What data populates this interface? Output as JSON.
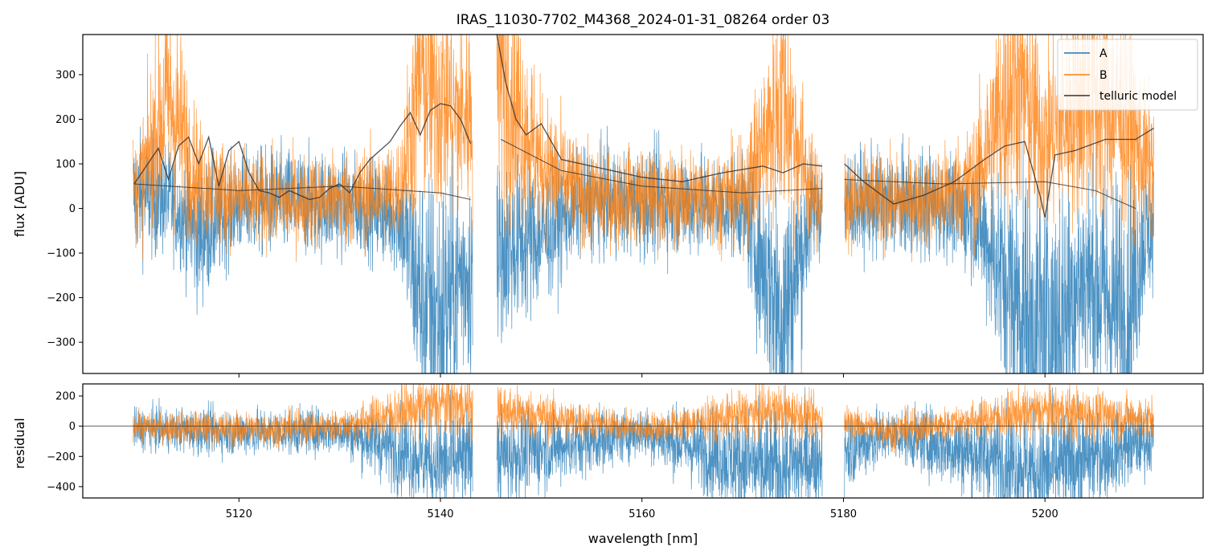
{
  "chart_data": [
    {
      "type": "line",
      "title": "IRAS_11030-7702_M4368_2024-01-31_08264  order 03",
      "xlabel": "",
      "ylabel": "flux [ADU]",
      "xlim": [
        5104.5,
        5215.7
      ],
      "ylim": [
        -370,
        390
      ],
      "yticks": [
        -300,
        -200,
        -100,
        0,
        100,
        200,
        300
      ],
      "xticks": [
        5120,
        5140,
        5160,
        5180,
        5200
      ],
      "legend": {
        "placement": "top-right",
        "entries": [
          "A",
          "B",
          "telluric model"
        ]
      },
      "colors": {
        "A": "#1f77b4",
        "B": "#ff7f0e",
        "telluric model": "#333333"
      },
      "segments": [
        [
          5109.5,
          5143.2
        ],
        [
          5145.6,
          5177.9
        ],
        [
          5180.1,
          5210.8
        ]
      ],
      "series": [
        {
          "name": "A",
          "description_points": {
            "x": [
              5110,
              5113,
              5116,
              5120,
              5124,
              5128,
              5132,
              5136,
              5138,
              5140,
              5142,
              5146,
              5150,
              5154,
              5158,
              5162,
              5166,
              5170,
              5174,
              5177,
              5181,
              5185,
              5189,
              5193,
              5197,
              5200,
              5204,
              5208,
              5210
            ],
            "y": [
              30,
              20,
              -60,
              10,
              15,
              10,
              5,
              -20,
              -200,
              -250,
              -150,
              -100,
              -60,
              10,
              10,
              15,
              10,
              0,
              -250,
              0,
              10,
              10,
              10,
              -20,
              -200,
              -300,
              -150,
              -250,
              -50
            ]
          }
        },
        {
          "name": "B",
          "description_points": {
            "x": [
              5110,
              5113,
              5116,
              5120,
              5124,
              5128,
              5132,
              5136,
              5138,
              5140,
              5142,
              5146,
              5150,
              5154,
              5158,
              5162,
              5166,
              5170,
              5174,
              5177,
              5181,
              5185,
              5189,
              5193,
              5197,
              5200,
              5204,
              5208,
              5210
            ],
            "y": [
              40,
              250,
              60,
              20,
              15,
              20,
              25,
              40,
              300,
              250,
              200,
              300,
              100,
              30,
              25,
              20,
              25,
              30,
              250,
              30,
              20,
              15,
              20,
              60,
              300,
              150,
              250,
              200,
              100
            ]
          }
        },
        {
          "name": "telluric model",
          "description_points": {
            "x": [
              5109.6,
              5110.5,
              5112,
              5113,
              5114,
              5115,
              5116,
              5117,
              5118,
              5119,
              5120,
              5121,
              5122,
              5123,
              5124,
              5125,
              5126,
              5127,
              5128,
              5129,
              5130,
              5131,
              5132,
              5133,
              5134,
              5135,
              5136,
              5137,
              5138,
              5139,
              5140,
              5141,
              5142,
              5143
            ],
            "y": [
              55,
              85,
              135,
              65,
              140,
              160,
              100,
              160,
              50,
              130,
              150,
              80,
              40,
              35,
              25,
              40,
              30,
              20,
              25,
              45,
              55,
              35,
              80,
              110,
              130,
              150,
              185,
              215,
              165,
              220,
              235,
              230,
              200,
              145
            ]
          }
        }
      ]
    },
    {
      "type": "line",
      "title": "",
      "xlabel": "wavelength [nm]",
      "ylabel": "residual",
      "xlim": [
        5104.5,
        5215.7
      ],
      "ylim": [
        -475,
        280
      ],
      "yticks": [
        -400,
        -200,
        0,
        200
      ],
      "xticks": [
        5120,
        5140,
        5160,
        5180,
        5200
      ],
      "series": [
        {
          "name": "A",
          "description_points": {
            "x": [
              5110,
              5120,
              5130,
              5140,
              5146,
              5160,
              5173,
              5185,
              5200,
              5210
            ],
            "y": [
              -20,
              -40,
              -30,
              -250,
              -200,
              -40,
              -300,
              -50,
              -300,
              -100
            ]
          }
        },
        {
          "name": "B",
          "description_points": {
            "x": [
              5110,
              5120,
              5130,
              5140,
              5146,
              5160,
              5173,
              5185,
              5200,
              5210
            ],
            "y": [
              0,
              -20,
              0,
              150,
              100,
              -20,
              100,
              -30,
              100,
              50
            ]
          }
        }
      ]
    }
  ]
}
